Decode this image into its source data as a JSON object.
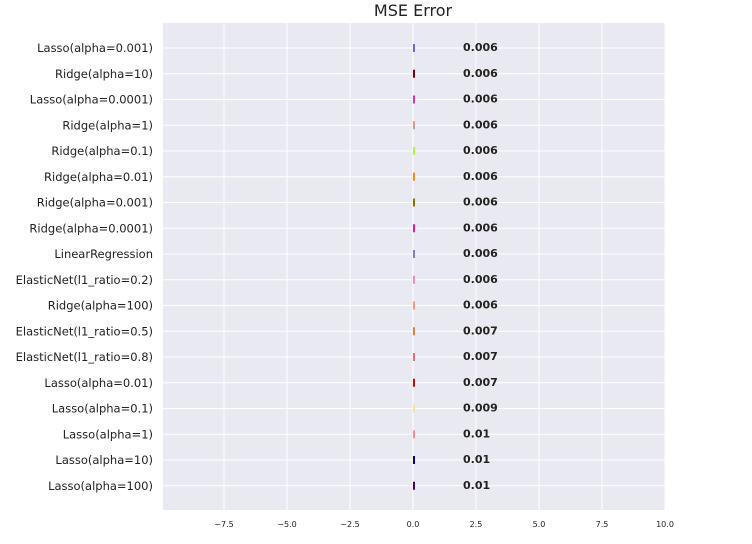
{
  "chart_data": {
    "type": "bar",
    "orientation": "horizontal",
    "title": "MSE Error",
    "xlabel": "",
    "ylabel": "",
    "xlim": [
      -10,
      10
    ],
    "xticks": [
      "−7.5",
      "−5.0",
      "−2.5",
      "0.0",
      "2.5",
      "5.0",
      "7.5",
      "10.0"
    ],
    "xtick_values": [
      -7.5,
      -5.0,
      -2.5,
      0.0,
      2.5,
      5.0,
      7.5,
      10.0
    ],
    "grid": true,
    "background": "#e9e9f1",
    "categories": [
      "Lasso(alpha=0.001)",
      "Ridge(alpha=10)",
      "Lasso(alpha=0.0001)",
      "Ridge(alpha=1)",
      "Ridge(alpha=0.1)",
      "Ridge(alpha=0.01)",
      "Ridge(alpha=0.001)",
      "Ridge(alpha=0.0001)",
      "LinearRegression",
      "ElasticNet(l1_ratio=0.2)",
      "Ridge(alpha=100)",
      "ElasticNet(l1_ratio=0.5)",
      "ElasticNet(l1_ratio=0.8)",
      "Lasso(alpha=0.01)",
      "Lasso(alpha=0.1)",
      "Lasso(alpha=1)",
      "Lasso(alpha=10)",
      "Lasso(alpha=100)"
    ],
    "values": [
      0.006,
      0.006,
      0.006,
      0.006,
      0.006,
      0.006,
      0.006,
      0.006,
      0.006,
      0.006,
      0.006,
      0.007,
      0.007,
      0.007,
      0.009,
      0.01,
      0.01,
      0.01
    ],
    "value_labels": [
      "0.006",
      "0.006",
      "0.006",
      "0.006",
      "0.006",
      "0.006",
      "0.006",
      "0.006",
      "0.006",
      "0.006",
      "0.006",
      "0.007",
      "0.007",
      "0.007",
      "0.009",
      "0.01",
      "0.01",
      "0.01"
    ],
    "colors": [
      "#6a6ad0",
      "#7a0010",
      "#e0329e",
      "#d2a08a",
      "#b6f05a",
      "#f08a2a",
      "#8a7010",
      "#e0208a",
      "#7a80c0",
      "#d890d0",
      "#f29a80",
      "#d0844a",
      "#e8706a",
      "#b01808",
      "#f8e0a0",
      "#f4908a",
      "#000088",
      "#40006a"
    ]
  }
}
